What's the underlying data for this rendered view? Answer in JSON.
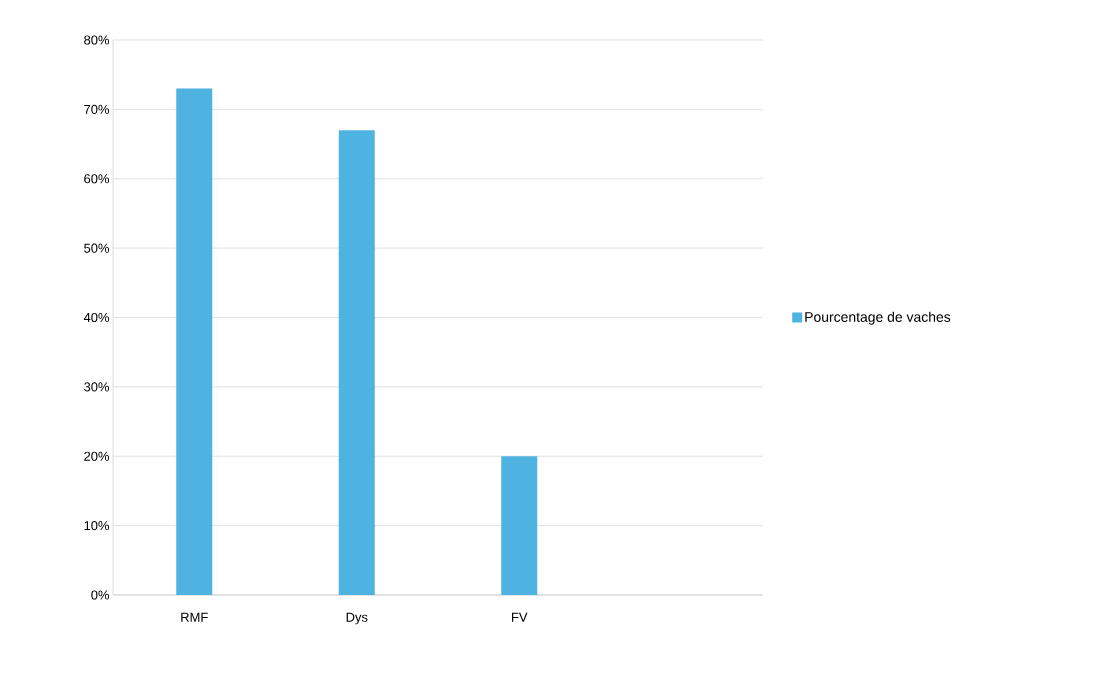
{
  "chart_data": {
    "type": "bar",
    "categories": [
      "RMF",
      "Dys",
      "FV",
      null
    ],
    "series": [
      {
        "name": "Pourcentage de vaches",
        "color": "#4fb3e2",
        "values": [
          73,
          67,
          20,
          null
        ]
      }
    ],
    "ylim": [
      0,
      80
    ],
    "yticks": [
      {
        "value": 0,
        "label": "0%"
      },
      {
        "value": 10,
        "label": "10%"
      },
      {
        "value": 20,
        "label": "20%"
      },
      {
        "value": 30,
        "label": "30%"
      },
      {
        "value": 40,
        "label": "40%"
      },
      {
        "value": 50,
        "label": "50%"
      },
      {
        "value": 60,
        "label": "60%"
      },
      {
        "value": 70,
        "label": "70%"
      },
      {
        "value": 80,
        "label": "80%"
      }
    ],
    "grid": "y",
    "legend": "right"
  }
}
